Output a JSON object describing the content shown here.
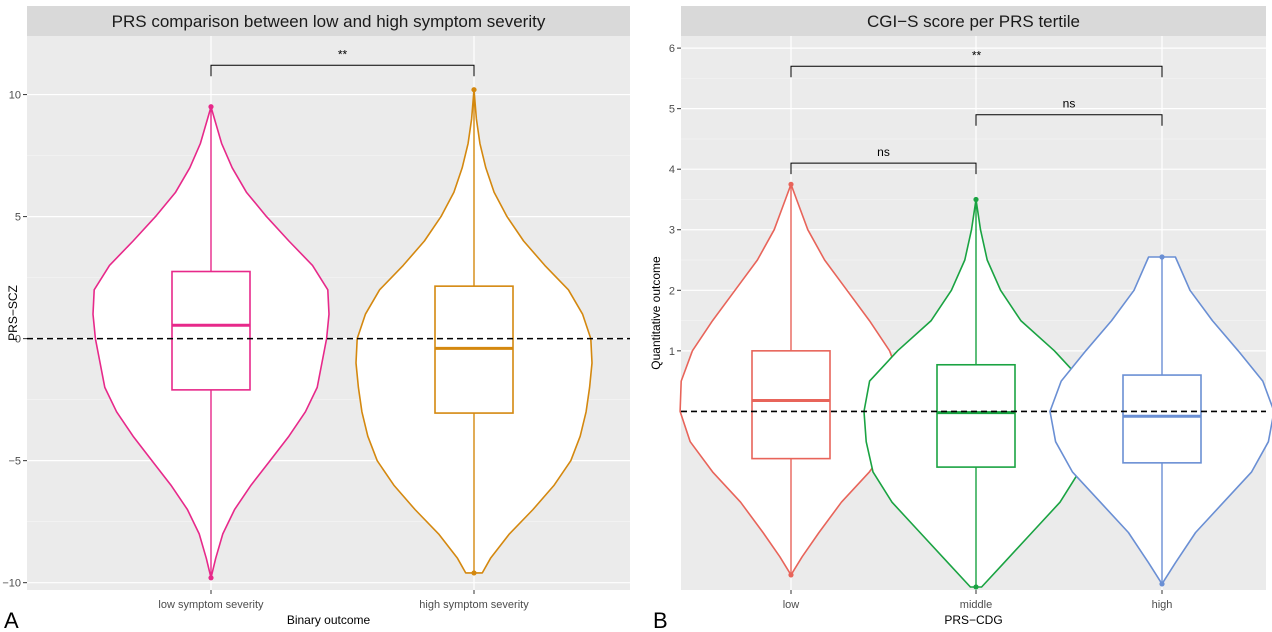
{
  "chart_data": [
    {
      "type": "violin",
      "panel_label": "A",
      "title": "PRS comparison between low and high symptom severity",
      "xlabel": "Binary outcome",
      "ylabel": "PRS−SCZ",
      "ylim": [
        -10.3,
        12.4
      ],
      "yticks": [
        -10,
        -5,
        0,
        5,
        10
      ],
      "ytick_labels": [
        "−10",
        "−5",
        "0",
        "5",
        "10"
      ],
      "reference_line": 0,
      "groups": [
        {
          "name": "low symptom severity",
          "color": "#e7298a",
          "min": -9.8,
          "q1": -2.1,
          "median": 0.55,
          "q3": 2.75,
          "max": 9.5,
          "density": [
            [
              -9.8,
              0.0
            ],
            [
              -9,
              0.04
            ],
            [
              -8,
              0.1
            ],
            [
              -7,
              0.2
            ],
            [
              -6,
              0.34
            ],
            [
              -5,
              0.5
            ],
            [
              -4,
              0.66
            ],
            [
              -3,
              0.8
            ],
            [
              -2,
              0.9
            ],
            [
              -1,
              0.94
            ],
            [
              0,
              0.98
            ],
            [
              1,
              1.0
            ],
            [
              2,
              0.99
            ],
            [
              3,
              0.86
            ],
            [
              4,
              0.66
            ],
            [
              5,
              0.47
            ],
            [
              6,
              0.3
            ],
            [
              7,
              0.18
            ],
            [
              8,
              0.09
            ],
            [
              9,
              0.03
            ],
            [
              9.5,
              0.0
            ]
          ]
        },
        {
          "name": "high symptom severity",
          "color": "#d4880f",
          "min": -9.6,
          "q1": -3.05,
          "median": -0.4,
          "q3": 2.15,
          "max": 10.2,
          "density": [
            [
              -9.6,
              0.07
            ],
            [
              -9,
              0.14
            ],
            [
              -8,
              0.3
            ],
            [
              -7,
              0.5
            ],
            [
              -6,
              0.68
            ],
            [
              -5,
              0.82
            ],
            [
              -4,
              0.9
            ],
            [
              -3,
              0.95
            ],
            [
              -2,
              0.98
            ],
            [
              -1,
              1.0
            ],
            [
              0,
              0.99
            ],
            [
              1,
              0.92
            ],
            [
              2,
              0.8
            ],
            [
              3,
              0.6
            ],
            [
              4,
              0.42
            ],
            [
              5,
              0.28
            ],
            [
              6,
              0.17
            ],
            [
              7,
              0.1
            ],
            [
              8,
              0.05
            ],
            [
              9,
              0.02
            ],
            [
              10.2,
              0.0
            ]
          ]
        }
      ],
      "comparisons": [
        {
          "from": "low symptom severity",
          "to": "high symptom severity",
          "label": "**",
          "y": 11.2
        }
      ]
    },
    {
      "type": "violin",
      "panel_label": "B",
      "title": "CGI−S score per PRS tertile",
      "xlabel": "PRS−CDG",
      "ylabel": "Quantitative outcome",
      "ylim": [
        -2.95,
        6.2
      ],
      "yticks": [
        1,
        2,
        3,
        4,
        5,
        6
      ],
      "ytick_labels": [
        "1",
        "2",
        "3",
        "4",
        "5",
        "6"
      ],
      "reference_line": 0,
      "groups": [
        {
          "name": "low",
          "color": "#e8645a",
          "min": -2.7,
          "q1": -0.78,
          "median": 0.18,
          "q3": 1.0,
          "max": 3.75,
          "density": [
            [
              -2.7,
              0.0
            ],
            [
              -2.4,
              0.1
            ],
            [
              -2,
              0.25
            ],
            [
              -1.5,
              0.45
            ],
            [
              -1,
              0.7
            ],
            [
              -0.5,
              0.9
            ],
            [
              0,
              0.99
            ],
            [
              0.5,
              0.98
            ],
            [
              1,
              0.88
            ],
            [
              1.5,
              0.7
            ],
            [
              2,
              0.5
            ],
            [
              2.5,
              0.3
            ],
            [
              3,
              0.15
            ],
            [
              3.5,
              0.05
            ],
            [
              3.75,
              0.0
            ]
          ]
        },
        {
          "name": "middle",
          "color": "#1aa342",
          "min": -2.9,
          "q1": -0.92,
          "median": -0.02,
          "q3": 0.77,
          "max": 3.5,
          "density": [
            [
              -2.9,
              0.05
            ],
            [
              -2.5,
              0.25
            ],
            [
              -2,
              0.5
            ],
            [
              -1.5,
              0.75
            ],
            [
              -1,
              0.92
            ],
            [
              -0.5,
              0.98
            ],
            [
              0,
              1.0
            ],
            [
              0.5,
              0.95
            ],
            [
              1,
              0.7
            ],
            [
              1.5,
              0.4
            ],
            [
              2,
              0.22
            ],
            [
              2.5,
              0.1
            ],
            [
              3,
              0.04
            ],
            [
              3.5,
              0.0
            ]
          ]
        },
        {
          "name": "high",
          "color": "#6a8fd4",
          "min": -2.85,
          "q1": -0.85,
          "median": -0.08,
          "q3": 0.6,
          "max": 2.55,
          "density": [
            [
              -2.85,
              0.0
            ],
            [
              -2.5,
              0.12
            ],
            [
              -2,
              0.3
            ],
            [
              -1.5,
              0.55
            ],
            [
              -1,
              0.8
            ],
            [
              -0.5,
              0.95
            ],
            [
              0,
              1.0
            ],
            [
              0.5,
              0.9
            ],
            [
              1,
              0.68
            ],
            [
              1.5,
              0.45
            ],
            [
              2,
              0.25
            ],
            [
              2.55,
              0.12
            ]
          ]
        }
      ],
      "comparisons": [
        {
          "from": "low",
          "to": "high",
          "label": "**",
          "y": 5.7
        },
        {
          "from": "middle",
          "to": "high",
          "label": "ns",
          "y": 4.9
        },
        {
          "from": "low",
          "to": "middle",
          "label": "ns",
          "y": 4.1
        }
      ]
    }
  ]
}
